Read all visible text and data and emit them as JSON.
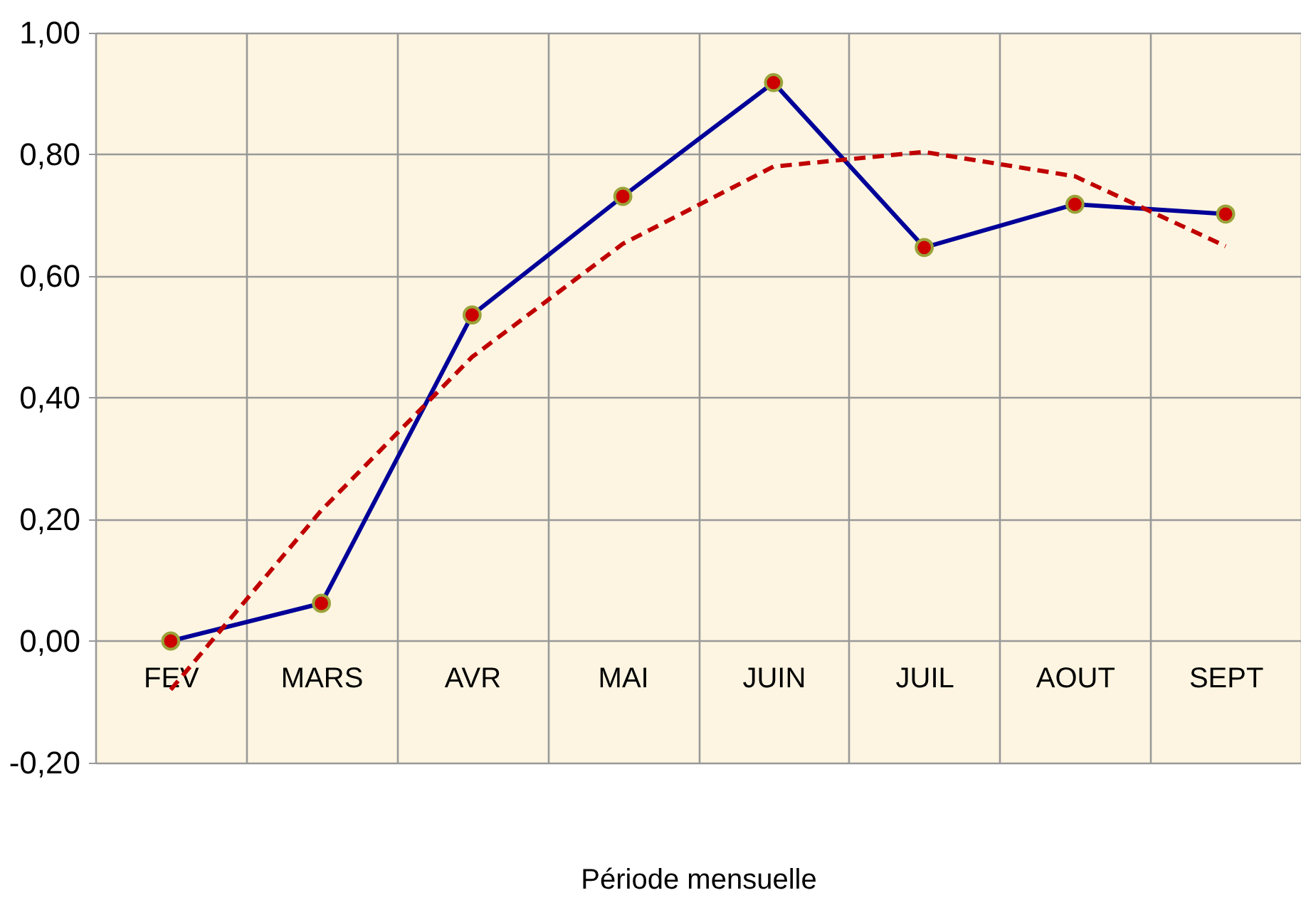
{
  "chart_data": {
    "type": "line",
    "xlabel": "Période mensuelle",
    "categories": [
      "FEV",
      "MARS",
      "AVR",
      "MAI",
      "JUIN",
      "JUIL",
      "AOUT",
      "SEPT"
    ],
    "series": [
      {
        "color": "#000099",
        "marker": "circle",
        "line_style": "solid",
        "values": [
          0.0,
          0.062,
          0.536,
          0.731,
          0.918,
          0.647,
          0.718,
          0.702
        ]
      },
      {
        "color": "#c00000",
        "marker": "none",
        "line_style": "dashed",
        "values": [
          -0.08,
          0.215,
          0.467,
          0.653,
          0.78,
          0.804,
          0.764,
          0.649
        ]
      }
    ],
    "ylim": [
      -0.2,
      1.0
    ],
    "yticks": [
      {
        "value": -0.2,
        "label": "-0,20"
      },
      {
        "value": 0.0,
        "label": "0,00"
      },
      {
        "value": 0.2,
        "label": "0,20"
      },
      {
        "value": 0.4,
        "label": "0,40"
      },
      {
        "value": 0.6,
        "label": "0,60"
      },
      {
        "value": 0.8,
        "label": "0,80"
      },
      {
        "value": 1.0,
        "label": "1,00"
      }
    ],
    "grid": true,
    "legend": false
  }
}
